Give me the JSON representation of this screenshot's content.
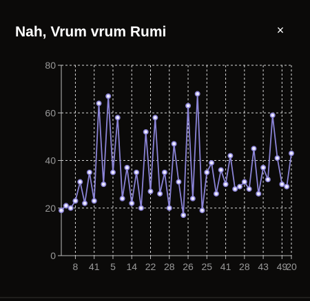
{
  "window": {
    "title": "Nah, Vrum vrum Rumi",
    "close_icon": "close-icon",
    "close_glyph": "×"
  },
  "chart_data": {
    "type": "line",
    "title": "",
    "xlabel": "",
    "ylabel": "",
    "ylim": [
      0,
      80
    ],
    "y_ticks": [
      0,
      20,
      40,
      60,
      80
    ],
    "x_tick_labels": [
      "8",
      "41",
      "5",
      "14",
      "22",
      "28",
      "26",
      "25",
      "41",
      "28",
      "43",
      "49",
      "20"
    ],
    "grid": true,
    "series": [
      {
        "color": "#8b84d7",
        "values": [
          19,
          21,
          20,
          23,
          31,
          22,
          35,
          23,
          64,
          30,
          67,
          35,
          58,
          24,
          37,
          22,
          35,
          20,
          52,
          27,
          58,
          26,
          35,
          20,
          47,
          31,
          17,
          63,
          24,
          68,
          19,
          35,
          39,
          26,
          36,
          30,
          42,
          28,
          29,
          31,
          28,
          45,
          26,
          37,
          32,
          59,
          41,
          30,
          29,
          43
        ]
      }
    ]
  }
}
